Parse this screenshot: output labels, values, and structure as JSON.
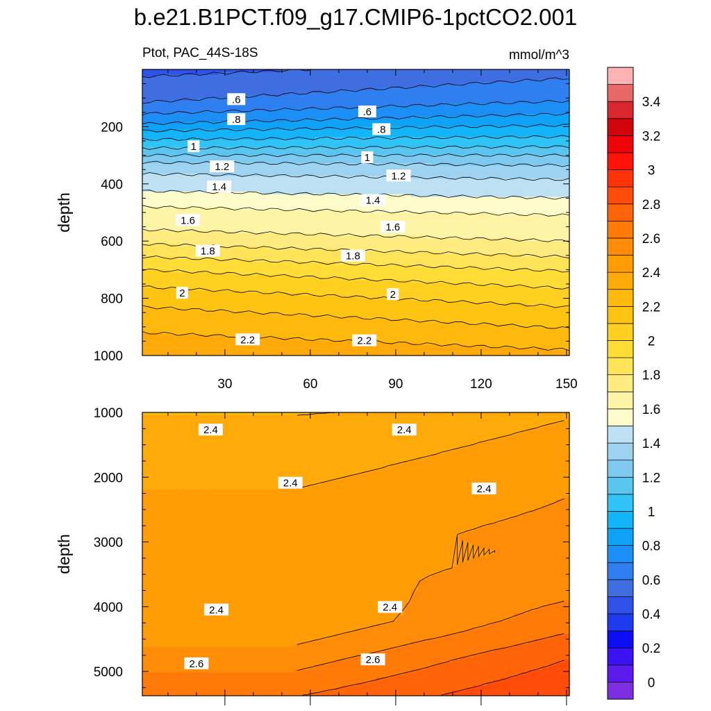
{
  "chart_data": {
    "type": "contour",
    "title": "b.e21.B1PCT.f09_g17.CMIP6-1pctCO2.001",
    "subtitle_left": "Ptot, PAC_44S-18S",
    "units": "mmol/m^3",
    "xlabel": "",
    "x_range": [
      1,
      151
    ],
    "x_ticks": [
      "30",
      "60",
      "90",
      "120",
      "150"
    ],
    "x_tick_values": [
      30,
      60,
      90,
      120,
      150
    ],
    "colorbar": {
      "levels": [
        -0.2,
        0,
        0.1,
        0.2,
        0.3,
        0.4,
        0.5,
        0.6,
        0.7,
        0.8,
        0.9,
        1.0,
        1.1,
        1.2,
        1.3,
        1.4,
        1.5,
        1.6,
        1.7,
        1.8,
        1.9,
        2.0,
        2.1,
        2.2,
        2.3,
        2.4,
        2.5,
        2.6,
        2.7,
        2.8,
        2.9,
        3.0,
        3.1,
        3.2,
        3.3,
        3.4,
        3.5,
        3.6
      ],
      "colors": [
        "#7d2ee0",
        "#5d1aef",
        "#3a12f4",
        "#0c0cf5",
        "#1f3bf0",
        "#2f52ea",
        "#3f6ee0",
        "#2f7ff0",
        "#1c8ff6",
        "#0fa3f8",
        "#14b4f8",
        "#30c4f6",
        "#5ac6f0",
        "#7ec9ef",
        "#9dd3f0",
        "#bde0f2",
        "#fffccc",
        "#fff4a6",
        "#ffeb80",
        "#ffe45a",
        "#ffdd36",
        "#ffd020",
        "#ffc412",
        "#ffb80c",
        "#ffaa08",
        "#ff9c06",
        "#ff8c06",
        "#ff7a08",
        "#ff6408",
        "#ff4c08",
        "#ff3208",
        "#ff1208",
        "#ee0408",
        "#d2040a",
        "#d8282e",
        "#e86868",
        "#ffb2b2"
      ],
      "tick_labels": [
        "0",
        "0.2",
        "0.4",
        "0.6",
        "0.8",
        "1",
        "1.2",
        "1.4",
        "1.6",
        "1.8",
        "2",
        "2.2",
        "2.4",
        "2.6",
        "2.8",
        "3",
        "3.2",
        "3.4"
      ],
      "tick_values": [
        0,
        0.2,
        0.4,
        0.6,
        0.8,
        1.0,
        1.2,
        1.4,
        1.6,
        1.8,
        2.0,
        2.2,
        2.4,
        2.6,
        2.8,
        3.0,
        3.2,
        3.4
      ]
    },
    "panels": [
      {
        "name": "upper",
        "ylabel": "depth",
        "y_range": [
          0,
          1000
        ],
        "y_ticks": [
          "200",
          "400",
          "600",
          "800",
          "1000"
        ],
        "y_tick_values": [
          200,
          400,
          600,
          800,
          1000
        ],
        "show_x_tick_labels": true,
        "contour_levels": [
          0.5,
          0.6,
          0.7,
          0.8,
          0.9,
          1.0,
          1.1,
          1.2,
          1.3,
          1.4,
          1.5,
          1.6,
          1.7,
          1.8,
          1.9,
          2.0,
          2.1,
          2.2,
          2.3
        ],
        "contour_depth_x1": [
          25,
          115,
          155,
          190,
          215,
          245,
          275,
          300,
          325,
          365,
          425,
          480,
          560,
          610,
          655,
          700,
          760,
          830,
          920
        ],
        "contour_depth_x151": [
          -40,
          30,
          110,
          155,
          195,
          235,
          270,
          300,
          335,
          385,
          450,
          510,
          600,
          655,
          705,
          765,
          830,
          905,
          980
        ],
        "labels": [
          {
            "text": ".6",
            "x": 34,
            "depth": 105
          },
          {
            "text": ".6",
            "x": 80,
            "depth": 148
          },
          {
            "text": ".8",
            "x": 34,
            "depth": 175
          },
          {
            "text": ".8",
            "x": 85,
            "depth": 210
          },
          {
            "text": "1",
            "x": 19,
            "depth": 270
          },
          {
            "text": "1",
            "x": 80,
            "depth": 308
          },
          {
            "text": "1.2",
            "x": 29,
            "depth": 340
          },
          {
            "text": "1.2",
            "x": 91,
            "depth": 372
          },
          {
            "text": "1.4",
            "x": 28,
            "depth": 410
          },
          {
            "text": "1.4",
            "x": 82,
            "depth": 458
          },
          {
            "text": "1.6",
            "x": 17,
            "depth": 528
          },
          {
            "text": "1.6",
            "x": 89,
            "depth": 551
          },
          {
            "text": "1.8",
            "x": 24,
            "depth": 635
          },
          {
            "text": "1.8",
            "x": 75,
            "depth": 652
          },
          {
            "text": "2",
            "x": 15,
            "depth": 782
          },
          {
            "text": "2",
            "x": 89,
            "depth": 787
          },
          {
            "text": "2.2",
            "x": 38,
            "depth": 945
          },
          {
            "text": "2.2",
            "x": 79,
            "depth": 948
          }
        ]
      },
      {
        "name": "lower",
        "ylabel": "depth",
        "y_range": [
          1000,
          5375
        ],
        "y_ticks": [
          "1000",
          "2000",
          "3000",
          "4000",
          "5000"
        ],
        "y_tick_values": [
          1000,
          2000,
          3000,
          4000,
          5000
        ],
        "show_x_tick_labels": false,
        "labels": [
          {
            "text": "2.4",
            "x": 25,
            "depth": 1270
          },
          {
            "text": "2.4",
            "x": 93,
            "depth": 1270
          },
          {
            "text": "2.4",
            "x": 53,
            "depth": 2090
          },
          {
            "text": "2.4",
            "x": 121,
            "depth": 2180
          },
          {
            "text": "2.4",
            "x": 27,
            "depth": 4050
          },
          {
            "text": "2.4",
            "x": 88,
            "depth": 4010
          },
          {
            "text": "2.6",
            "x": 20,
            "depth": 4880
          },
          {
            "text": "2.6",
            "x": 82,
            "depth": 4820
          }
        ]
      }
    ]
  }
}
